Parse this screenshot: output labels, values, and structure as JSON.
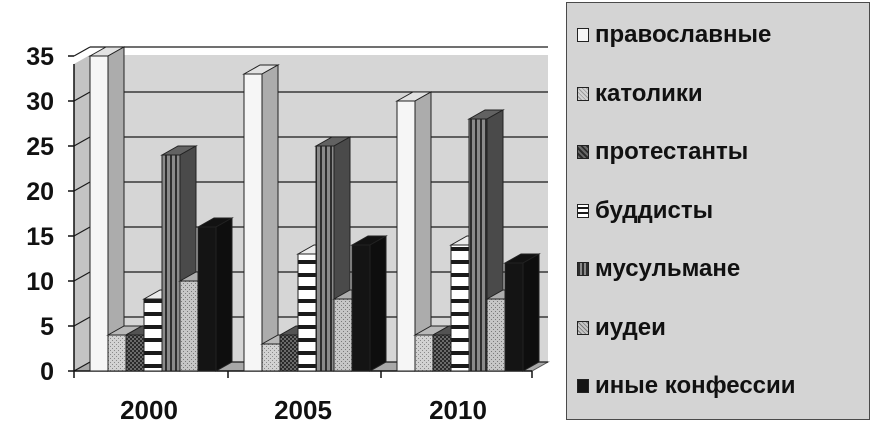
{
  "chart_data": {
    "type": "bar",
    "style": "3d-clustered-column",
    "categories": [
      "2000",
      "2005",
      "2010"
    ],
    "series": [
      {
        "name": "православные",
        "values": [
          35,
          33,
          30
        ],
        "fill": "#f6f6f6",
        "pattern": "none"
      },
      {
        "name": "католики",
        "values": [
          4,
          3,
          4
        ],
        "fill": "#c8c8c8",
        "pattern": "light-grey"
      },
      {
        "name": "протестанты",
        "values": [
          4,
          4,
          4
        ],
        "fill": "#5a5a5a",
        "pattern": "dark-dotted"
      },
      {
        "name": "буддисты",
        "values": [
          8,
          13,
          14
        ],
        "fill": "#ffffff",
        "pattern": "horizontal-bands"
      },
      {
        "name": "мусульмане",
        "values": [
          24,
          25,
          28
        ],
        "fill": "#6a6a6a",
        "pattern": "vertical-stripes"
      },
      {
        "name": "иудеи",
        "values": [
          10,
          8,
          8
        ],
        "fill": "#bdbdbd",
        "pattern": "light-dotted"
      },
      {
        "name": "иные конфессии",
        "values": [
          16,
          14,
          12
        ],
        "fill": "#141414",
        "pattern": "none"
      }
    ],
    "ylim": [
      0,
      35
    ],
    "yticks": [
      "0",
      "5",
      "10",
      "15",
      "20",
      "25",
      "30",
      "35"
    ],
    "grid": true,
    "legend": "right",
    "colors": {
      "wall": "#d6d6d6",
      "gridline": "#1a1a1a",
      "floor": "#9a9a9a"
    }
  }
}
